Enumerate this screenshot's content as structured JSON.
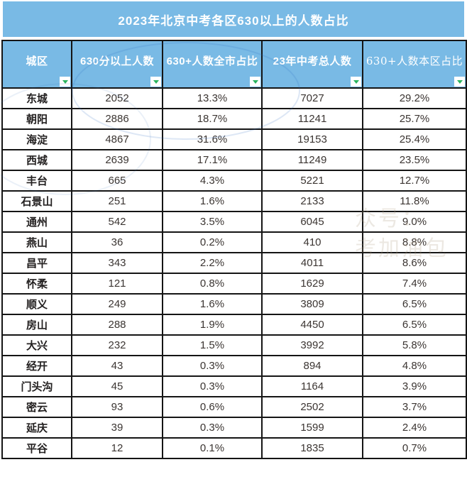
{
  "title": "2023年北京中考各区630以上的人数占比",
  "columns": [
    {
      "label": "城区"
    },
    {
      "label": "630分以上人数"
    },
    {
      "label": "630+人数全市占比"
    },
    {
      "label": "23年中考总人数"
    },
    {
      "label": "630+人数本区占比"
    }
  ],
  "rows": [
    [
      "东城",
      "2052",
      "13.3%",
      "7027",
      "29.2%"
    ],
    [
      "朝阳",
      "2886",
      "18.7%",
      "11241",
      "25.7%"
    ],
    [
      "海淀",
      "4867",
      "31.6%",
      "19153",
      "25.4%"
    ],
    [
      "西城",
      "2639",
      "17.1%",
      "11249",
      "23.5%"
    ],
    [
      "丰台",
      "665",
      "4.3%",
      "5221",
      "12.7%"
    ],
    [
      "石景山",
      "251",
      "1.6%",
      "2133",
      "11.8%"
    ],
    [
      "通州",
      "542",
      "3.5%",
      "6045",
      "9.0%"
    ],
    [
      "燕山",
      "36",
      "0.2%",
      "410",
      "8.8%"
    ],
    [
      "昌平",
      "343",
      "2.2%",
      "4011",
      "8.6%"
    ],
    [
      "怀柔",
      "121",
      "0.8%",
      "1629",
      "7.4%"
    ],
    [
      "顺义",
      "249",
      "1.6%",
      "3809",
      "6.5%"
    ],
    [
      "房山",
      "288",
      "1.9%",
      "4450",
      "6.5%"
    ],
    [
      "大兴",
      "232",
      "1.5%",
      "3992",
      "5.8%"
    ],
    [
      "经开",
      "43",
      "0.3%",
      "894",
      "4.8%"
    ],
    [
      "门头沟",
      "45",
      "0.3%",
      "1164",
      "3.9%"
    ],
    [
      "密云",
      "93",
      "0.6%",
      "2502",
      "3.7%"
    ],
    [
      "延庆",
      "39",
      "0.3%",
      "1599",
      "2.4%"
    ],
    [
      "平谷",
      "12",
      "0.1%",
      "1835",
      "0.7%"
    ]
  ],
  "watermark": {
    "line1": "众号：",
    "line2": "考加油包"
  },
  "colors": {
    "banner_blue": "#79BAE5",
    "filter_green": "#2BB45E",
    "border_black": "#151515",
    "text_dark": "#3B3532"
  }
}
